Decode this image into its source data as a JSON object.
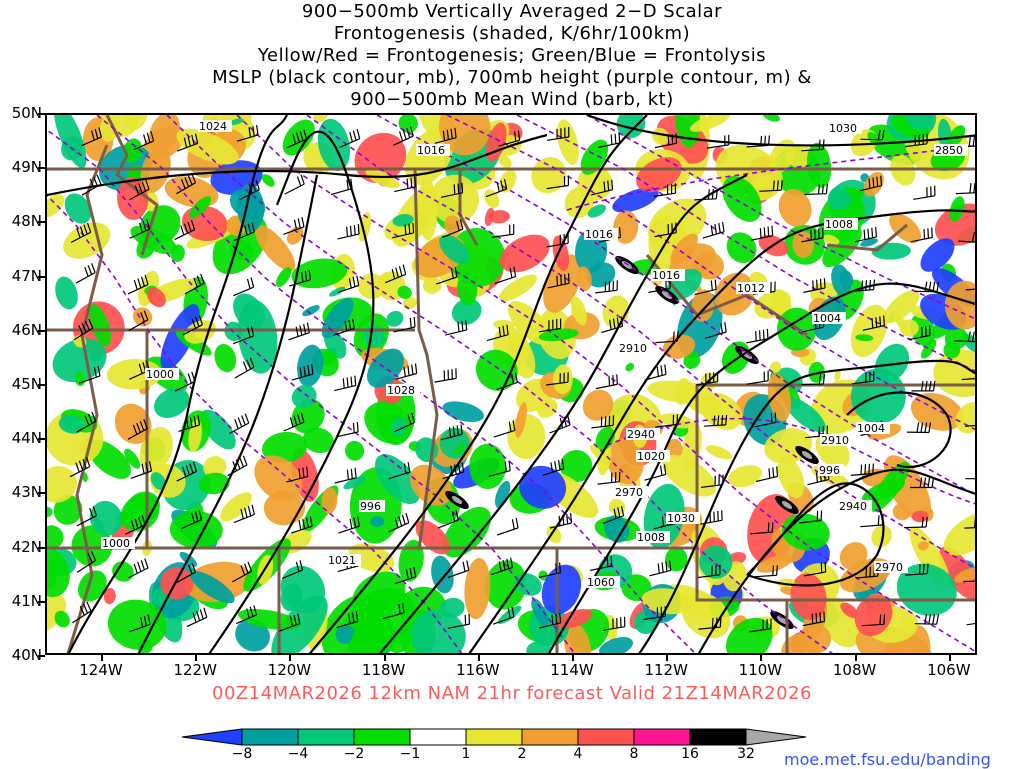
{
  "title_lines": [
    "900−500mb Vertically Averaged 2−D Scalar",
    "Frontogenesis (shaded, K/6hr/100km)",
    "Yellow/Red = Frontogenesis;  Green/Blue = Frontolysis",
    "MSLP (black contour, mb), 700mb height (purple contour, m) &",
    "900−500mb Mean Wind (barb, kt)"
  ],
  "valid_line": "00Z14MAR2026 12km NAM 21hr forecast Valid 21Z14MAR2026",
  "credit": "moe.met.fsu.edu/banding",
  "lat_labels": [
    "50N",
    "49N",
    "48N",
    "47N",
    "46N",
    "45N",
    "44N",
    "43N",
    "42N",
    "41N",
    "40N"
  ],
  "lon_labels": [
    "124W",
    "122W",
    "120W",
    "118W",
    "116W",
    "114W",
    "112W",
    "110W",
    "108W",
    "106W"
  ],
  "scale": {
    "labels": [
      "−8",
      "−4",
      "−2",
      "−1",
      "1",
      "2",
      "4",
      "8",
      "16",
      "32"
    ],
    "colors": [
      "#2040ff",
      "#00a0a0",
      "#00c878",
      "#00dd00",
      "#ffffff",
      "#e6e632",
      "#f0a030",
      "#ff5050",
      "#ff1493",
      "#000000"
    ]
  },
  "contour_labels": {
    "mslp": [
      "1024",
      "1016",
      "1016",
      "1016",
      "1012",
      "1008",
      "1004",
      "1000",
      "1028",
      "1020",
      "1004",
      "996",
      "996",
      "1030",
      "1008",
      "1000",
      "1021",
      "1060",
      "1030"
    ],
    "height": [
      "2850",
      "2910",
      "2940",
      "2910",
      "2970",
      "2940",
      "2970"
    ]
  },
  "colors": {
    "mslp": "#000000",
    "height": "#9400d3",
    "borders": "#7a5c48",
    "valid_text": "#ff5a5a",
    "credit_text": "#3355ff"
  }
}
